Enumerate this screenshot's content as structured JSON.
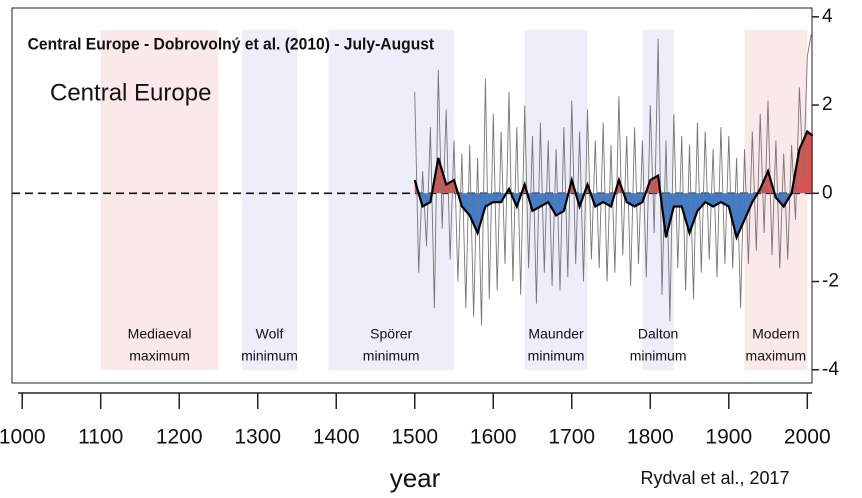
{
  "chart_data": {
    "type": "line",
    "title": "Central Europe - Dobrovolný et al. (2010) - July-August",
    "subtitle": "Central Europe",
    "xlabel": "year",
    "annotation": "Rydval et al., 2017",
    "xlim": [
      987,
      2006
    ],
    "ylim": [
      -4.3,
      4.2
    ],
    "xticks": [
      1000,
      1100,
      1200,
      1300,
      1400,
      1500,
      1600,
      1700,
      1800,
      1900,
      2000
    ],
    "yticks": [
      4,
      2,
      0,
      -2,
      -4
    ],
    "positive_color": "#d9534f",
    "negative_color": "#3a7bd5",
    "periods": [
      {
        "label": [
          "Mediaeval",
          "maximum"
        ],
        "start": 1100,
        "end": 1250,
        "color": "#fbe8e9"
      },
      {
        "label": [
          "Wolf",
          "minimum"
        ],
        "start": 1280,
        "end": 1350,
        "color": "#eeeefb"
      },
      {
        "label": [
          "Spörer",
          "minimum"
        ],
        "start": 1390,
        "end": 1550,
        "color": "#eeeefb"
      },
      {
        "label": [
          "Maunder",
          "minimum"
        ],
        "start": 1640,
        "end": 1720,
        "color": "#eeeefb"
      },
      {
        "label": [
          "Dalton",
          "minimum"
        ],
        "start": 1790,
        "end": 1830,
        "color": "#eeeefb"
      },
      {
        "label": [
          "Modern",
          "maximum"
        ],
        "start": 1920,
        "end": 2000,
        "color": "#fbe8e9"
      }
    ],
    "series": [
      {
        "color": "#777777",
        "x": [
          1500,
          1505,
          1510,
          1515,
          1520,
          1525,
          1530,
          1535,
          1540,
          1545,
          1550,
          1555,
          1560,
          1565,
          1570,
          1575,
          1580,
          1585,
          1590,
          1595,
          1600,
          1605,
          1610,
          1615,
          1620,
          1625,
          1630,
          1635,
          1640,
          1645,
          1650,
          1655,
          1660,
          1665,
          1670,
          1675,
          1680,
          1685,
          1690,
          1695,
          1700,
          1705,
          1710,
          1715,
          1720,
          1725,
          1730,
          1735,
          1740,
          1745,
          1750,
          1755,
          1760,
          1765,
          1770,
          1775,
          1780,
          1785,
          1790,
          1795,
          1800,
          1805,
          1810,
          1815,
          1820,
          1825,
          1830,
          1835,
          1840,
          1845,
          1850,
          1855,
          1860,
          1865,
          1870,
          1875,
          1880,
          1885,
          1890,
          1895,
          1900,
          1905,
          1910,
          1915,
          1920,
          1925,
          1930,
          1935,
          1940,
          1945,
          1950,
          1955,
          1960,
          1965,
          1970,
          1975,
          1980,
          1985,
          1990,
          1995,
          2000,
          2005
        ],
        "values": [
          2.3,
          -1.8,
          0.5,
          -1.2,
          1.5,
          -2.6,
          2.8,
          -0.8,
          1.9,
          -1.5,
          1.2,
          -2.0,
          0.9,
          -2.6,
          1.1,
          -2.8,
          0.8,
          -3.0,
          2.6,
          -2.4,
          1.8,
          -2.2,
          1.4,
          -1.6,
          2.3,
          -2.0,
          1.5,
          -2.3,
          2.0,
          -1.7,
          1.3,
          -2.5,
          1.6,
          -1.8,
          1.2,
          -2.1,
          1.0,
          -2.2,
          1.5,
          -1.9,
          2.1,
          -1.6,
          1.4,
          -2.0,
          1.9,
          -1.5,
          1.2,
          -1.7,
          1.6,
          -2.0,
          1.1,
          -1.8,
          2.2,
          -1.4,
          1.3,
          -2.1,
          1.5,
          -1.6,
          1.2,
          -1.9,
          2.0,
          -0.9,
          3.5,
          -2.3,
          1.2,
          -2.9,
          1.8,
          -1.7,
          1.3,
          -2.2,
          1.1,
          -2.4,
          1.6,
          -1.8,
          1.4,
          -1.5,
          1.0,
          -1.9,
          1.5,
          -1.6,
          1.3,
          -1.7,
          0.8,
          -2.6,
          1.0,
          -1.6,
          1.4,
          -1.3,
          1.8,
          -0.9,
          2.1,
          -1.4,
          1.2,
          -1.7,
          0.9,
          -1.5,
          1.1,
          -0.6,
          2.4,
          0.3,
          3.1,
          3.6
        ]
      },
      {
        "color": "#000000",
        "x": [
          1500,
          1510,
          1520,
          1530,
          1540,
          1550,
          1560,
          1570,
          1580,
          1590,
          1600,
          1610,
          1620,
          1630,
          1640,
          1650,
          1660,
          1670,
          1680,
          1690,
          1700,
          1710,
          1720,
          1730,
          1740,
          1750,
          1760,
          1770,
          1780,
          1790,
          1800,
          1810,
          1820,
          1830,
          1840,
          1850,
          1860,
          1870,
          1880,
          1890,
          1900,
          1910,
          1920,
          1930,
          1940,
          1950,
          1960,
          1970,
          1980,
          1990,
          2000,
          2007
        ],
        "values": [
          0.3,
          -0.3,
          -0.2,
          0.8,
          0.2,
          0.3,
          -0.3,
          -0.5,
          -0.9,
          -0.3,
          -0.2,
          -0.2,
          0.1,
          -0.3,
          0.2,
          -0.4,
          -0.3,
          -0.2,
          -0.5,
          -0.4,
          0.3,
          -0.3,
          0.2,
          -0.3,
          -0.2,
          -0.3,
          0.3,
          -0.2,
          -0.3,
          -0.2,
          0.3,
          0.4,
          -1.0,
          -0.3,
          -0.3,
          -0.9,
          -0.4,
          -0.2,
          -0.3,
          -0.2,
          -0.3,
          -1.0,
          -0.6,
          -0.2,
          0.1,
          0.5,
          -0.1,
          -0.3,
          0.0,
          1.0,
          1.4,
          1.3
        ]
      }
    ]
  }
}
